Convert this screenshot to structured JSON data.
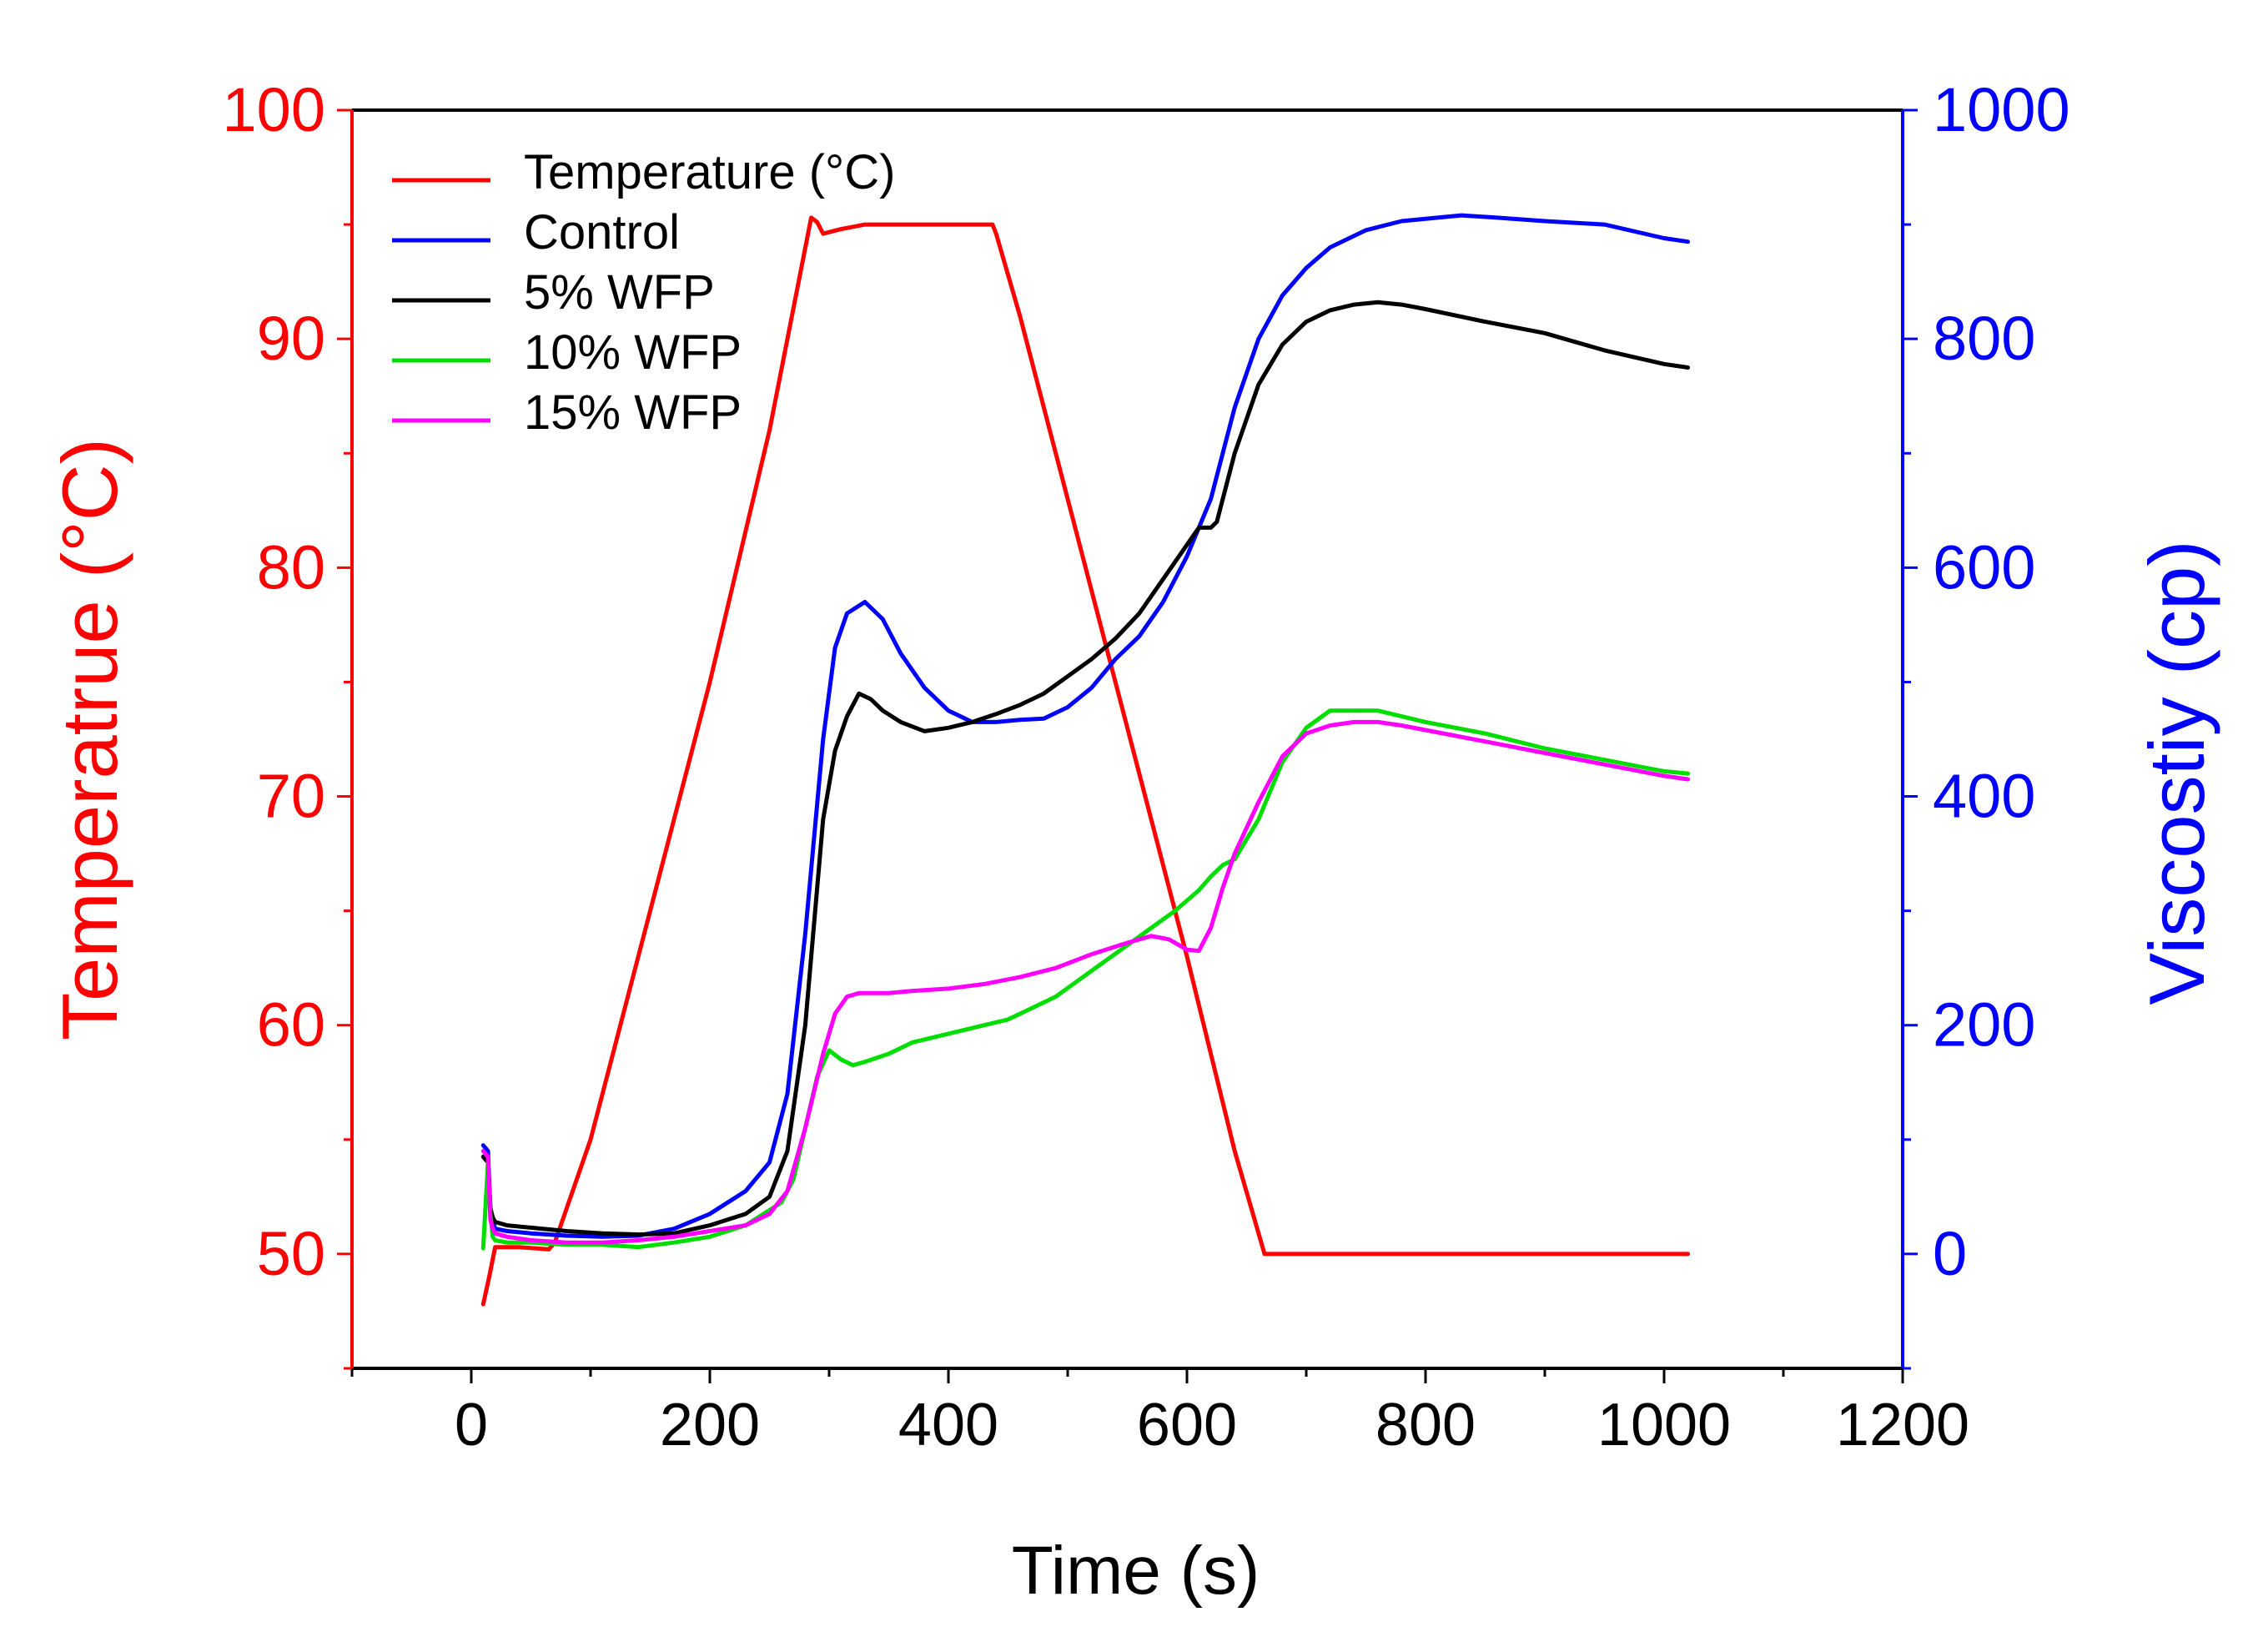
{
  "chart_data": {
    "type": "line",
    "title": "",
    "xlabel": "Time (s)",
    "ylabel_left": "Temperatrue (°C)",
    "ylabel_right": "Viscostiy (cp)",
    "xlim": [
      -100,
      1200
    ],
    "ylim_left": [
      45,
      100
    ],
    "ylim_right": [
      -100,
      1000
    ],
    "x_ticks": [
      0,
      200,
      400,
      600,
      800,
      1000,
      1200
    ],
    "y_left_ticks": [
      50,
      60,
      70,
      80,
      90,
      100
    ],
    "y_right_ticks": [
      0,
      200,
      400,
      600,
      800,
      1000
    ],
    "grid": false,
    "legend_position": "top-left",
    "colors": {
      "left_axis": "#ff0000",
      "right_axis": "#0000ff",
      "bottom_axis": "#000000"
    },
    "series": [
      {
        "name": "Temperature (°C)",
        "axis": "left",
        "color": "#ff0000",
        "x": [
          10,
          15,
          20,
          40,
          65,
          70,
          100,
          150,
          200,
          250,
          285,
          290,
          295,
          310,
          330,
          350,
          400,
          437,
          440,
          460,
          500,
          550,
          600,
          640,
          665,
          680,
          700,
          800,
          900,
          1000,
          1020
        ],
        "y": [
          47.8,
          49.0,
          50.3,
          50.3,
          50.2,
          50.5,
          55.0,
          65.0,
          75.0,
          86.0,
          95.3,
          95.1,
          94.6,
          94.8,
          95.0,
          95.0,
          95.0,
          95.0,
          94.6,
          91.0,
          83.0,
          73.0,
          63.0,
          54.5,
          50.0,
          50.0,
          50.0,
          50.0,
          50.0,
          50.0,
          50.0
        ]
      },
      {
        "name": "Control",
        "axis": "right",
        "color": "#0000ff",
        "x": [
          10,
          14,
          16,
          18,
          20,
          30,
          50,
          80,
          110,
          140,
          170,
          200,
          230,
          250,
          265,
          280,
          295,
          305,
          315,
          330,
          345,
          360,
          380,
          400,
          420,
          440,
          460,
          480,
          500,
          520,
          540,
          560,
          580,
          600,
          620,
          640,
          660,
          680,
          700,
          720,
          750,
          780,
          800,
          830,
          860,
          900,
          950,
          1000,
          1020
        ],
        "y": [
          95,
          90,
          40,
          30,
          22,
          20,
          18,
          16,
          15,
          16,
          22,
          35,
          55,
          80,
          140,
          280,
          450,
          530,
          560,
          570,
          555,
          525,
          495,
          475,
          465,
          465,
          467,
          468,
          478,
          495,
          520,
          540,
          570,
          610,
          660,
          740,
          800,
          838,
          862,
          880,
          895,
          903,
          905,
          908,
          906,
          903,
          900,
          888,
          885
        ]
      },
      {
        "name": "5% WFP",
        "axis": "right",
        "color": "#000000",
        "x": [
          10,
          14,
          16,
          18,
          20,
          30,
          50,
          80,
          110,
          140,
          170,
          200,
          230,
          250,
          265,
          280,
          295,
          305,
          315,
          325,
          335,
          345,
          360,
          380,
          400,
          420,
          440,
          460,
          480,
          500,
          520,
          540,
          560,
          580,
          600,
          610,
          620,
          625,
          640,
          660,
          680,
          700,
          720,
          740,
          760,
          780,
          800,
          850,
          900,
          950,
          1000,
          1020
        ],
        "y": [
          85,
          80,
          40,
          32,
          28,
          25,
          23,
          20,
          18,
          17,
          18,
          25,
          35,
          50,
          90,
          200,
          380,
          440,
          470,
          490,
          485,
          475,
          465,
          457,
          460,
          465,
          472,
          480,
          490,
          505,
          520,
          538,
          560,
          590,
          620,
          635,
          635,
          640,
          700,
          760,
          795,
          815,
          825,
          830,
          832,
          830,
          826,
          815,
          805,
          790,
          778,
          775
        ]
      },
      {
        "name": "10% WFP",
        "axis": "right",
        "color": "#00dd00",
        "x": [
          10,
          14,
          16,
          18,
          20,
          30,
          50,
          80,
          110,
          140,
          170,
          200,
          230,
          260,
          270,
          280,
          290,
          300,
          310,
          320,
          330,
          350,
          370,
          390,
          410,
          430,
          450,
          470,
          490,
          510,
          530,
          550,
          570,
          590,
          610,
          620,
          630,
          640,
          660,
          680,
          700,
          720,
          740,
          760,
          780,
          800,
          850,
          900,
          950,
          1000,
          1020
        ],
        "y": [
          5,
          80,
          35,
          15,
          12,
          10,
          10,
          8,
          8,
          6,
          10,
          15,
          25,
          45,
          65,
          110,
          155,
          178,
          170,
          165,
          168,
          175,
          185,
          190,
          195,
          200,
          205,
          215,
          225,
          240,
          255,
          270,
          285,
          300,
          318,
          330,
          340,
          345,
          380,
          430,
          460,
          475,
          475,
          475,
          470,
          465,
          455,
          442,
          432,
          422,
          420
        ]
      },
      {
        "name": "15% WFP",
        "axis": "right",
        "color": "#ff00ff",
        "x": [
          10,
          14,
          16,
          18,
          20,
          30,
          50,
          80,
          110,
          140,
          170,
          200,
          230,
          250,
          265,
          280,
          295,
          305,
          315,
          325,
          335,
          350,
          370,
          400,
          430,
          460,
          490,
          520,
          550,
          570,
          585,
          600,
          610,
          620,
          630,
          640,
          660,
          680,
          700,
          720,
          740,
          760,
          780,
          800,
          850,
          900,
          950,
          1000,
          1020
        ],
        "y": [
          90,
          85,
          30,
          22,
          18,
          15,
          12,
          10,
          10,
          12,
          15,
          20,
          25,
          35,
          55,
          110,
          175,
          210,
          225,
          228,
          228,
          228,
          230,
          232,
          236,
          242,
          250,
          262,
          272,
          278,
          275,
          266,
          265,
          285,
          320,
          350,
          395,
          435,
          455,
          462,
          465,
          465,
          462,
          458,
          448,
          438,
          428,
          418,
          415
        ]
      }
    ]
  }
}
